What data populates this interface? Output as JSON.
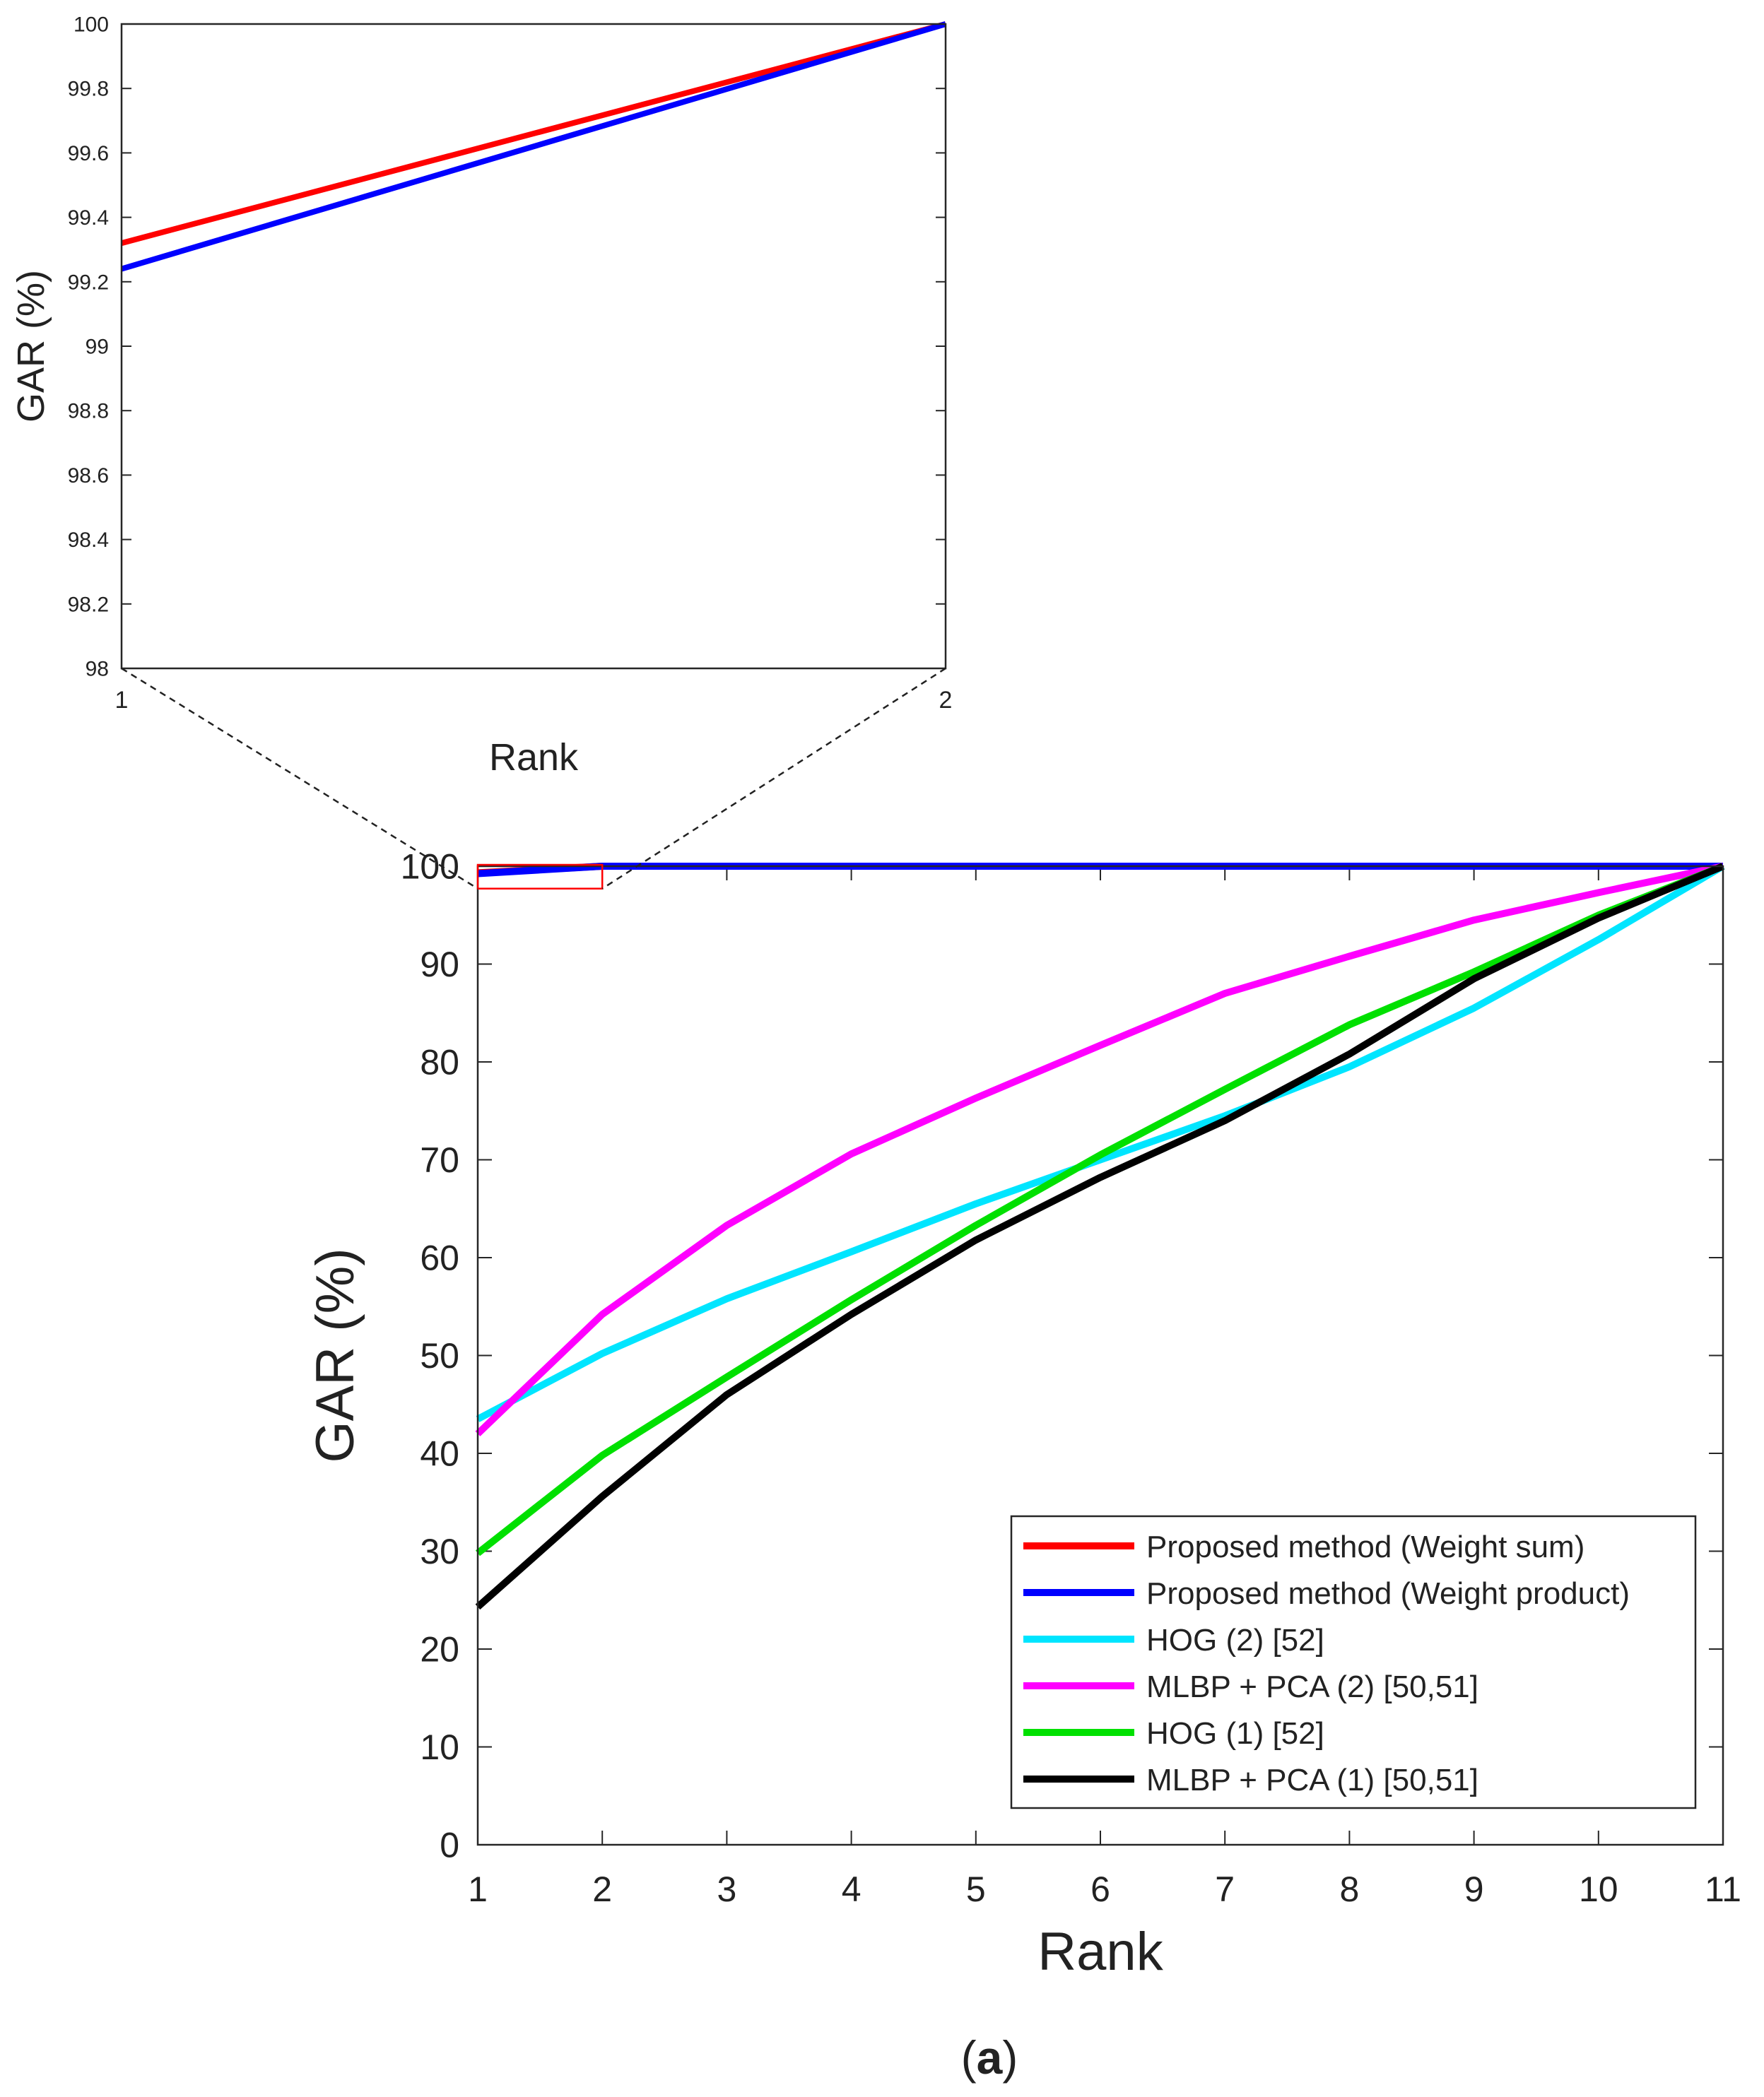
{
  "chart_data": [
    {
      "id": "main",
      "type": "line",
      "title": "",
      "xlabel": "Rank",
      "ylabel": "GAR (%)",
      "xlim": [
        1,
        11
      ],
      "ylim": [
        0,
        100
      ],
      "x_ticks": [
        1,
        2,
        3,
        4,
        5,
        6,
        7,
        8,
        9,
        10,
        11
      ],
      "y_ticks": [
        0,
        10,
        20,
        30,
        40,
        50,
        60,
        70,
        80,
        90,
        100
      ],
      "x": [
        1,
        2,
        3,
        4,
        5,
        6,
        7,
        8,
        9,
        10,
        11
      ],
      "legend_position": "bottom-right",
      "series": [
        {
          "name": "Proposed method (Weight sum)",
          "color": "#ff0000",
          "values": [
            99.32,
            100,
            100,
            100,
            100,
            100,
            100,
            100,
            100,
            100,
            100
          ]
        },
        {
          "name": "Proposed method (Weight product)",
          "color": "#0000ff",
          "values": [
            99.24,
            100,
            100,
            100,
            100,
            100,
            100,
            100,
            100,
            100,
            100
          ]
        },
        {
          "name": "HOG (2) [52]",
          "color": "#00e5ff",
          "values": [
            43.5,
            50.2,
            55.8,
            60.6,
            65.5,
            70.0,
            74.5,
            79.5,
            85.5,
            92.5,
            100
          ]
        },
        {
          "name": "MLBP + PCA (2) [50,51]",
          "color": "#ff00ff",
          "values": [
            42.0,
            54.2,
            63.3,
            70.6,
            76.3,
            81.7,
            87.0,
            90.8,
            94.5,
            97.3,
            100
          ]
        },
        {
          "name": "HOG (1) [52]",
          "color": "#00e000",
          "values": [
            29.8,
            39.8,
            47.8,
            55.7,
            63.3,
            70.5,
            77.2,
            83.8,
            89.2,
            95.0,
            100
          ]
        },
        {
          "name": "MLBP + PCA (1) [50,51]",
          "color": "#000000",
          "values": [
            24.3,
            35.6,
            46.0,
            54.2,
            61.8,
            68.2,
            74.0,
            80.8,
            88.5,
            94.7,
            100
          ]
        }
      ],
      "zoom_region": {
        "x": [
          1,
          2
        ],
        "y": [
          98,
          100
        ]
      }
    },
    {
      "id": "inset",
      "type": "line",
      "title": "",
      "xlabel": "Rank",
      "ylabel": "GAR (%)",
      "xlim": [
        1,
        2
      ],
      "ylim": [
        98,
        100
      ],
      "x_ticks": [
        1,
        2
      ],
      "y_ticks": [
        98,
        98.2,
        98.4,
        98.6,
        98.8,
        99,
        99.2,
        99.4,
        99.6,
        99.8,
        100
      ],
      "x": [
        1,
        2
      ],
      "series": [
        {
          "name": "Proposed method (Weight sum)",
          "color": "#ff0000",
          "values": [
            99.32,
            100
          ]
        },
        {
          "name": "Proposed method (Weight product)",
          "color": "#0000ff",
          "values": [
            99.24,
            100
          ]
        }
      ]
    }
  ],
  "caption": {
    "label": "a",
    "open": "(",
    "close": ")"
  }
}
